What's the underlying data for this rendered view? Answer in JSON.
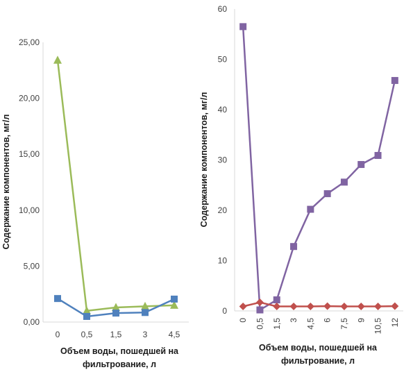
{
  "chart_data": [
    {
      "type": "line",
      "x": [
        "0",
        "0,5",
        "1,5",
        "3",
        "4,5"
      ],
      "ylim": [
        0,
        25
      ],
      "yticks": [
        "0,00",
        "5,00",
        "10,00",
        "15,00",
        "20,00",
        "25,00"
      ],
      "ylabel": "Содержание компонентов, мг/л",
      "xlabel_lines": [
        "Объем воды, пошедшей на",
        "фильтрование, л"
      ],
      "grid": false,
      "series": [
        {
          "color": "#9bbb59",
          "marker": "triangle",
          "values": [
            23.4,
            1.0,
            1.3,
            1.4,
            1.5
          ]
        },
        {
          "color": "#4f81bd",
          "marker": "square",
          "values": [
            2.1,
            0.5,
            0.8,
            0.85,
            2.05
          ]
        }
      ]
    },
    {
      "type": "line",
      "x": [
        "0",
        "0,5",
        "1,5",
        "3",
        "4,5",
        "6",
        "7,5",
        "9",
        "10,5",
        "12"
      ],
      "ylim": [
        0,
        60
      ],
      "yticks": [
        "0",
        "10",
        "20",
        "30",
        "40",
        "50",
        "60"
      ],
      "ylabel": "Содержание компонентов, мг/л",
      "xlabel_lines": [
        "Объем воды, пошедшей на",
        "фильтрование, л"
      ],
      "grid": false,
      "series": [
        {
          "color": "#8064a2",
          "marker": "square",
          "values": [
            56.5,
            0.2,
            2.2,
            12.8,
            20.2,
            23.3,
            25.6,
            29.1,
            30.9,
            45.8
          ]
        },
        {
          "color": "#c0504d",
          "marker": "diamond",
          "values": [
            0.9,
            1.7,
            0.9,
            0.9,
            0.9,
            0.95,
            0.9,
            0.9,
            0.9,
            0.95
          ]
        }
      ]
    }
  ]
}
